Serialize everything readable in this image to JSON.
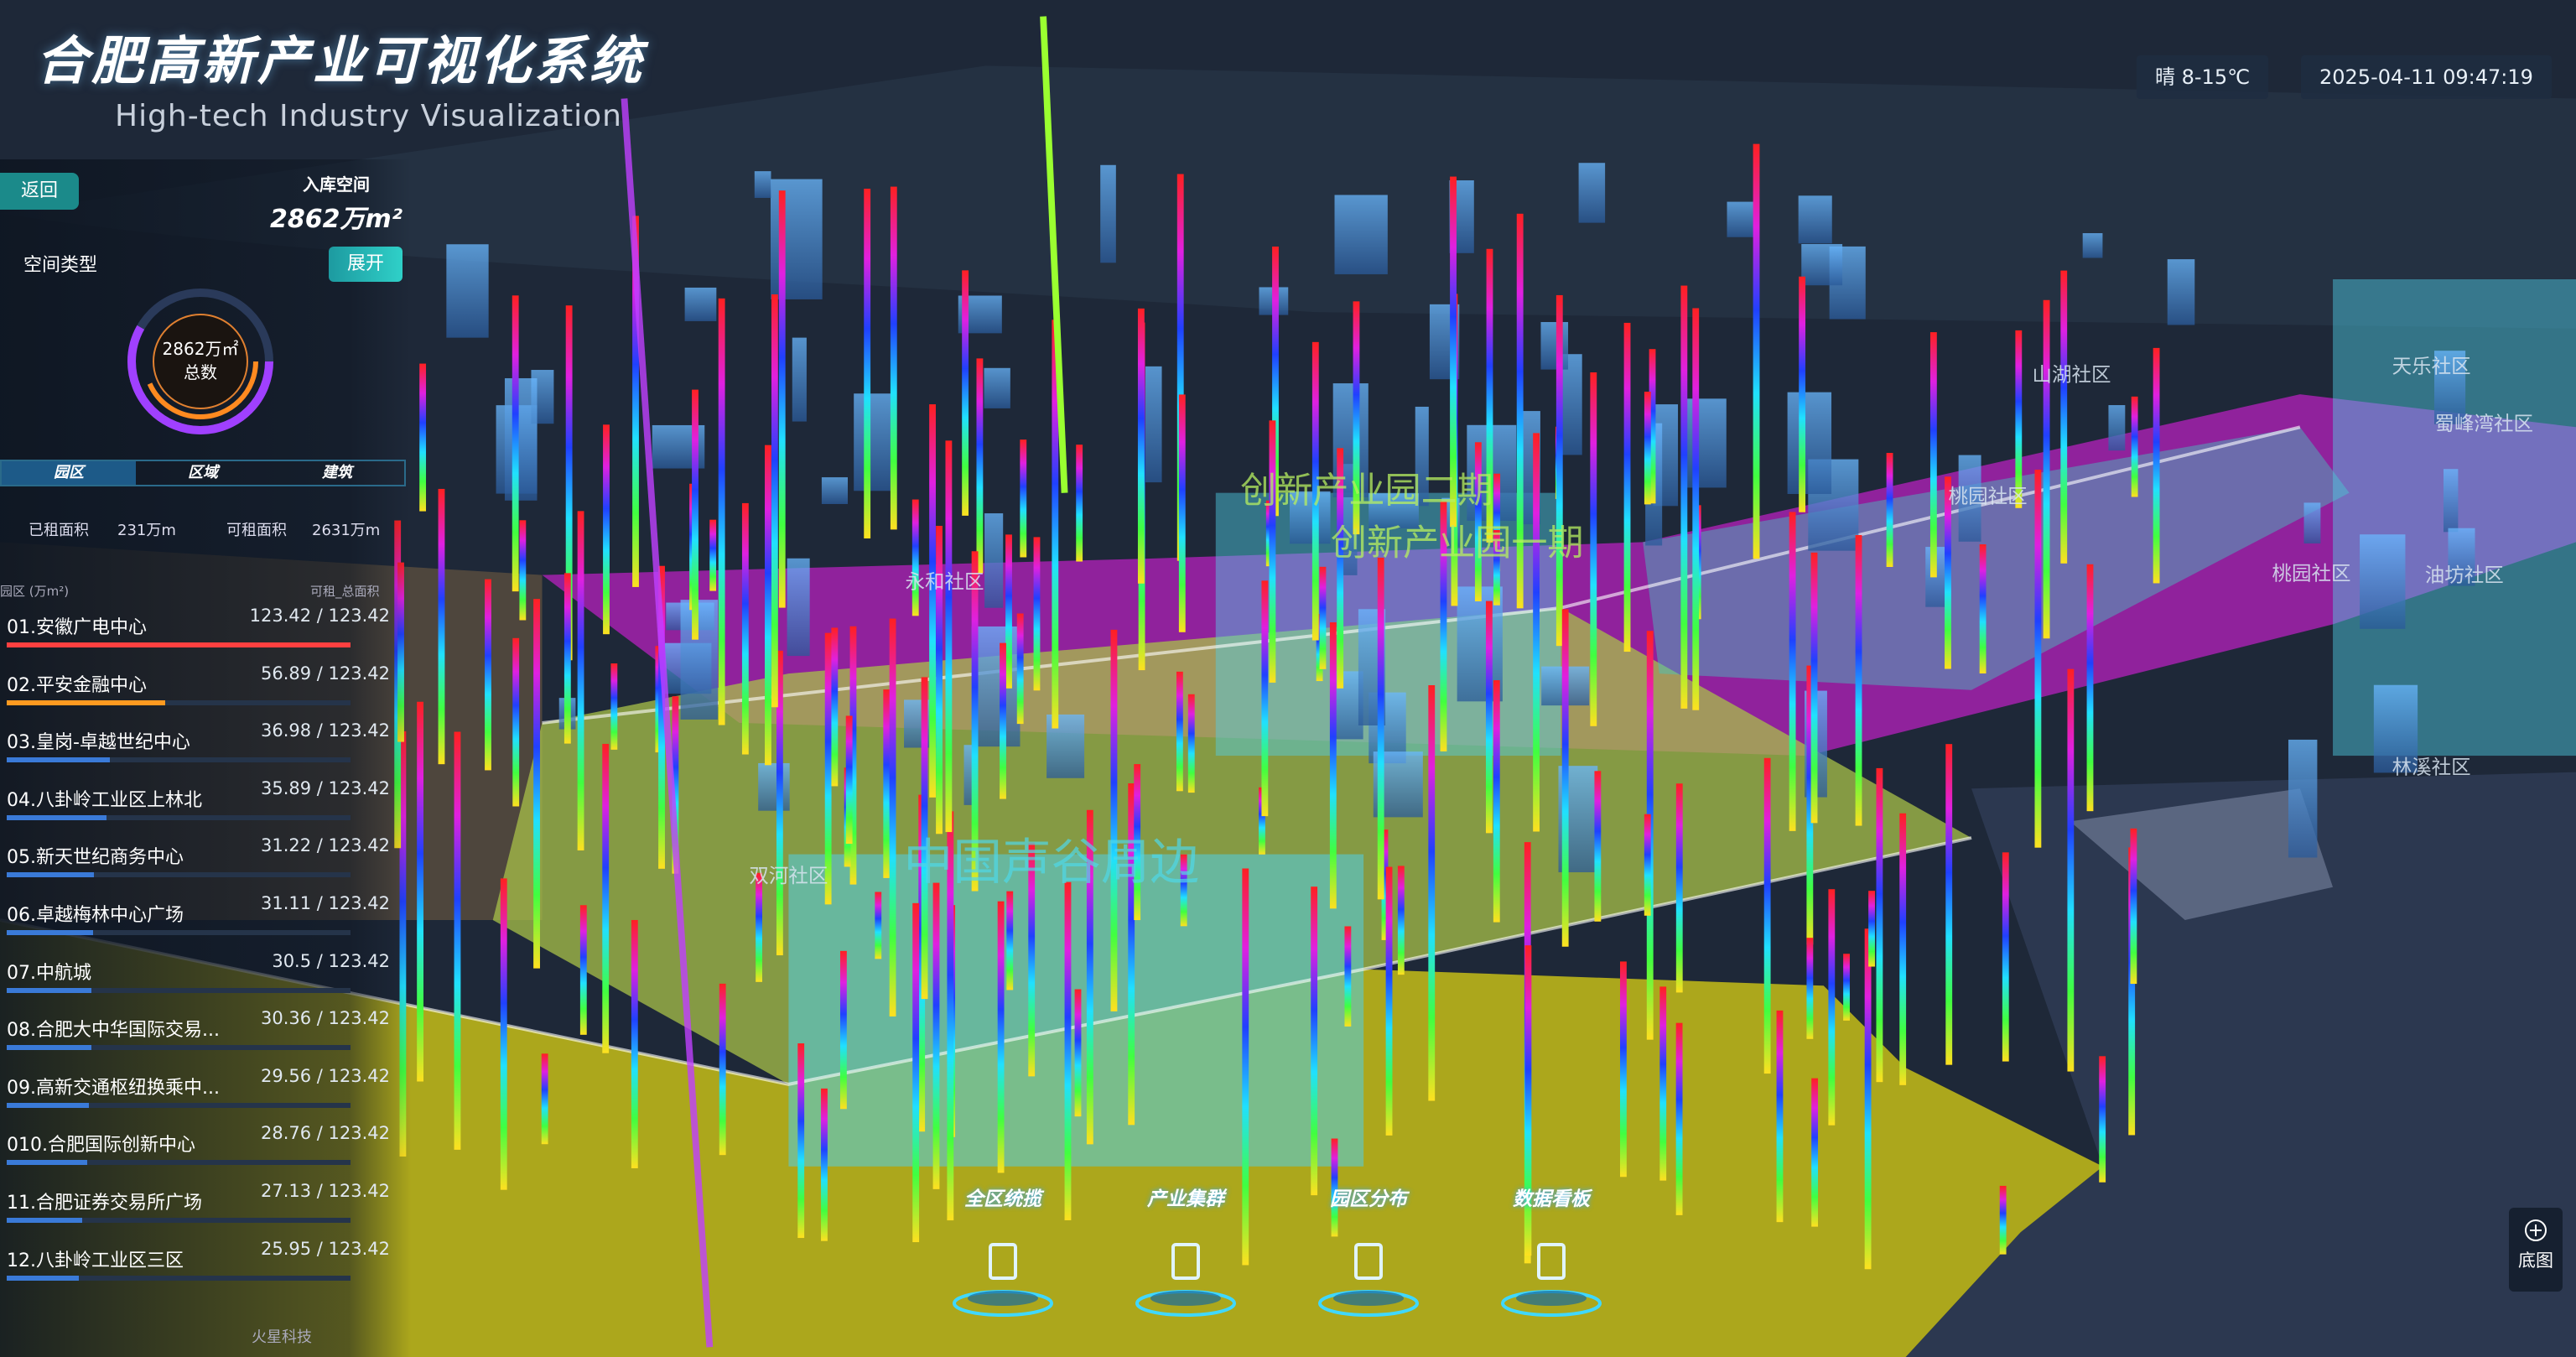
{
  "header": {
    "title": "合肥高新产业可视化系统",
    "subtitle": "High-tech Industry Visualization",
    "weather": "晴 8-15℃",
    "datetime": "2025-04-11 09:47:19"
  },
  "back": "返回",
  "stock": {
    "label": "入库空间",
    "value": "2862万m²"
  },
  "space": {
    "title": "空间类型",
    "expand": "展开",
    "donut_value": "2862万㎡",
    "donut_label": "总数"
  },
  "tabs": [
    "园区",
    "区域",
    "建筑"
  ],
  "summary": {
    "rented_label": "已租面积",
    "rented": "231万m",
    "available_label": "可租面积",
    "available": "2631万m"
  },
  "list": {
    "header_left": "园区 (万m²)",
    "header_right": "可租_总面积",
    "rows": [
      {
        "name": "01.安徽广电中心",
        "value": 123.42,
        "total": 123.42,
        "label": "123.42 / 123.42"
      },
      {
        "name": "02.平安金融中心",
        "value": 56.89,
        "total": 123.42,
        "label": "56.89 / 123.42"
      },
      {
        "name": "03.皇岗-卓越世纪中心",
        "value": 36.98,
        "total": 123.42,
        "label": "36.98 / 123.42"
      },
      {
        "name": "04.八卦岭工业区上林北",
        "value": 35.89,
        "total": 123.42,
        "label": "35.89 / 123.42"
      },
      {
        "name": "05.新天世纪商务中心",
        "value": 31.22,
        "total": 123.42,
        "label": "31.22 / 123.42"
      },
      {
        "name": "06.卓越梅林中心广场",
        "value": 31.11,
        "total": 123.42,
        "label": "31.11 / 123.42"
      },
      {
        "name": "07.中航城",
        "value": 30.5,
        "total": 123.42,
        "label": "30.5 / 123.42"
      },
      {
        "name": "08.合肥大中华国际交易...",
        "value": 30.36,
        "total": 123.42,
        "label": "30.36 / 123.42"
      },
      {
        "name": "09.高新交通枢纽换乘中...",
        "value": 29.56,
        "total": 123.42,
        "label": "29.56 / 123.42"
      },
      {
        "name": "010.合肥国际创新中心",
        "value": 28.76,
        "total": 123.42,
        "label": "28.76 / 123.42"
      },
      {
        "name": "11.合肥证券交易所广场",
        "value": 27.13,
        "total": 123.42,
        "label": "27.13 / 123.42"
      },
      {
        "name": "12.八卦岭工业区三区",
        "value": 25.95,
        "total": 123.42,
        "label": "25.95 / 123.42"
      }
    ]
  },
  "map": {
    "labels": [
      "山湖社区",
      "天乐社区",
      "蜀峰湾社区",
      "桃园社区",
      "桃园社区",
      "油坊社区",
      "林溪社区",
      "永和社区",
      "双河社区",
      "中国声谷周边",
      "创新产业园二期",
      "创新产业园一期"
    ]
  },
  "nav": [
    "全区统揽",
    "产业集群",
    "园区分布",
    "数据看板"
  ],
  "basemap": "底图",
  "watermark": "火星科技"
}
